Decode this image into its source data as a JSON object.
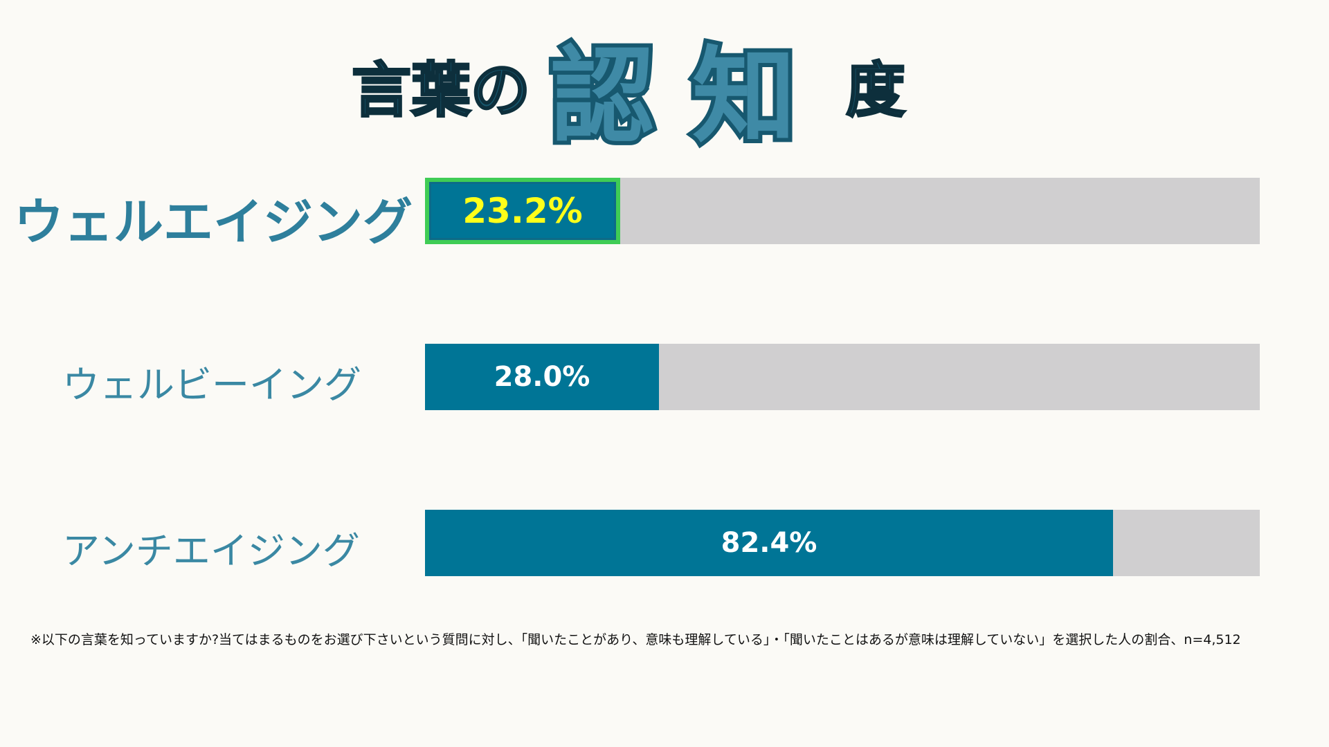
{
  "title": {
    "part1": "言葉の",
    "part2": "認",
    "part3": "知",
    "part4": "度"
  },
  "chart_data": {
    "type": "bar",
    "orientation": "horizontal",
    "title": "言葉の認知度",
    "categories": [
      "ウェルエイジング",
      "ウェルビーイング",
      "アンチエイジング"
    ],
    "values": [
      23.2,
      28.0,
      82.4
    ],
    "value_labels": [
      "23.2%",
      "28.0%",
      "82.4%"
    ],
    "highlighted": "ウェルエイジング",
    "xlim": [
      0,
      100
    ],
    "xlabel": "",
    "ylabel": "",
    "colors": {
      "bar": "#007596",
      "track": "#d0cfd0",
      "highlight_border": "#3fcc55",
      "highlight_text": "#ffff1a"
    }
  },
  "footnote": "※以下の言葉を知っていますか?当てはまるものをお選び下さいという質問に対し、「聞いたことがあり、意味も理解している」・「聞いたことはあるが意味は理解していない」を選択した人の割合、n=4,512"
}
